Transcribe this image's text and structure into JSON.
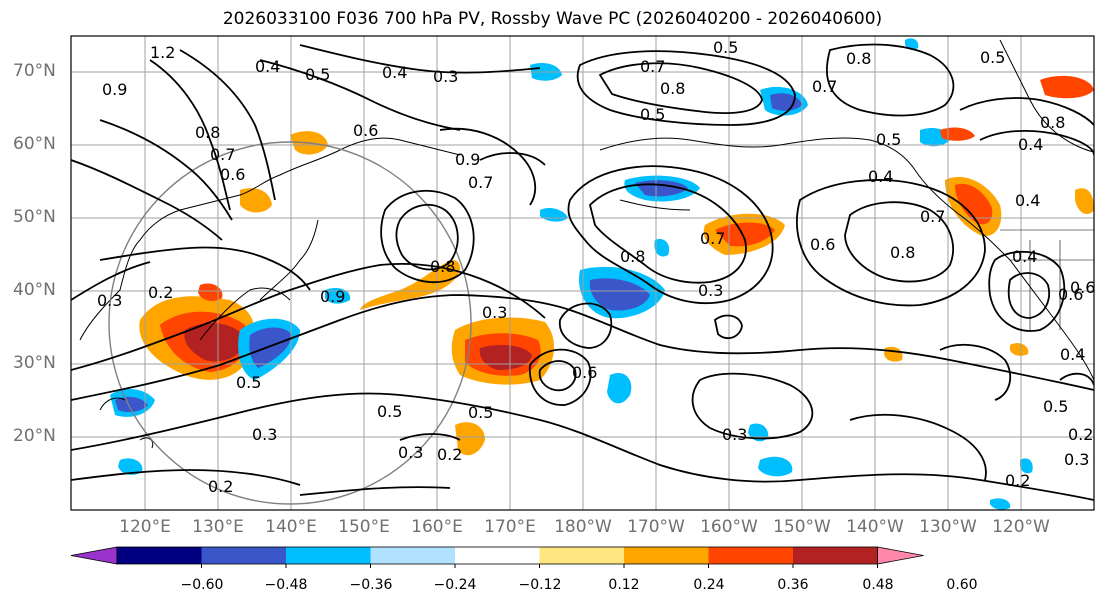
{
  "title": "2026033100 F036 700 hPa PV, Rossby Wave PC (2026040200 - 2026040600)",
  "lat_labels": [
    "70°N",
    "60°N",
    "50°N",
    "40°N",
    "30°N",
    "20°N"
  ],
  "lon_labels": [
    "120°E",
    "130°E",
    "140°E",
    "150°E",
    "160°E",
    "170°E",
    "180°W",
    "170°W",
    "160°W",
    "150°W",
    "140°W",
    "130°W",
    "120°W"
  ],
  "colorbar": {
    "ticks": [
      "−0.60",
      "−0.48",
      "−0.36",
      "−0.24",
      "−0.12",
      "0.12",
      "0.24",
      "0.36",
      "0.48",
      "0.60"
    ],
    "colors": [
      "#9933cc",
      "#000080",
      "#3a56c8",
      "#00bfff",
      "#b0e2ff",
      "#ffffff",
      "#ffe680",
      "#ffa500",
      "#ff4500",
      "#b22222",
      "#ff88aa"
    ]
  },
  "contour_labels": [
    "0.5",
    "0.8",
    "1.2",
    "0.4",
    "0.5",
    "0.4",
    "0.3",
    "0.7",
    "0.8",
    "0.5",
    "0.7",
    "0.8",
    "0.5",
    "0.9",
    "0.6",
    "0.8",
    "0.6",
    "0.7",
    "0.9",
    "0.7",
    "0.4",
    "0.5",
    "0.7",
    "0.8",
    "0.6",
    "0.8",
    "0.4",
    "0.7",
    "0.9",
    "0.3",
    "0.6",
    "0.8",
    "0.3",
    "0.5",
    "0.3",
    "0.2",
    "0.2",
    "0.3",
    "0.5",
    "0.6",
    "0.3",
    "0.2",
    "0.5",
    "0.3",
    "0.4",
    "0.3",
    "0.4",
    "0.6",
    "0.2",
    "0.2",
    "0.4",
    "0.5"
  ]
}
